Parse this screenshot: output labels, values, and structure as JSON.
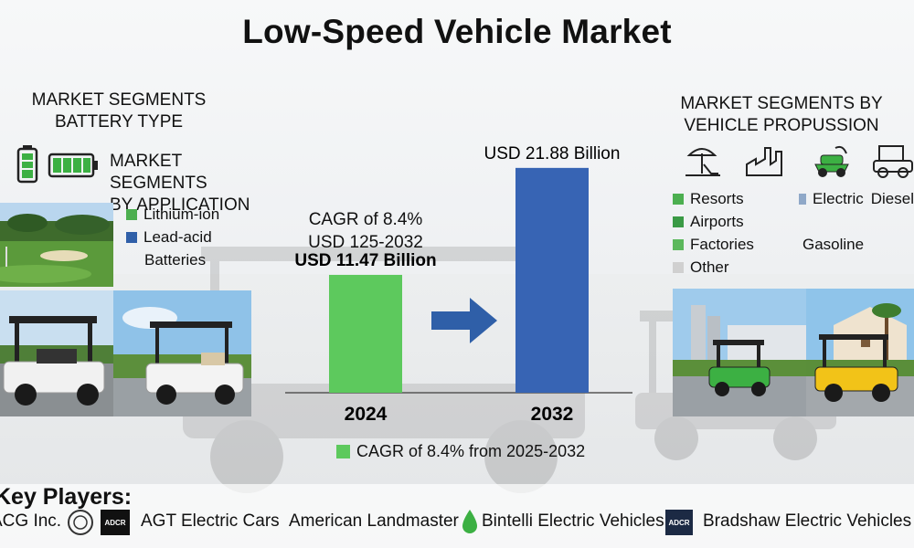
{
  "title": "Low-Speed Vehicle Market",
  "left_panel": {
    "battery_heading_line1": "MARKET SEGMENTS",
    "battery_heading_line2": "BATTERY TYPE",
    "application_heading_line1": "MARKET SEGMENTS",
    "application_heading_line2": "BY APPLICATION",
    "legend": [
      {
        "label": "Lithium-ion",
        "color": "#4caf50"
      },
      {
        "label": "Lead-acid",
        "color": "#2f5fa8"
      },
      {
        "label": "Batteries",
        "color": ""
      }
    ]
  },
  "right_panel": {
    "heading_line1": "MARKET SEGMENTS BY",
    "heading_line2": "VEHICLE PROPUSSION",
    "legend_left": [
      {
        "label": "Resorts",
        "color": "#4caf50"
      },
      {
        "label": "Airports",
        "color": "#3a9a45"
      },
      {
        "label": "Factories",
        "color": "#5cb85c"
      },
      {
        "label": "Other",
        "color": "#d0d0d0"
      }
    ],
    "legend_right": [
      {
        "label": "Electric",
        "color": "#8fa8c8"
      },
      {
        "label": "Diesel",
        "color": ""
      },
      {
        "label": "Gasoline",
        "color": ""
      }
    ]
  },
  "chart_data": {
    "type": "bar",
    "categories": [
      "2024",
      "2032"
    ],
    "values": [
      11.47,
      21.88
    ],
    "value_labels": [
      "USD 11.47 Billion",
      "USD 21.88 Billion"
    ],
    "bar_colors": [
      "#5dc95d",
      "#3764b4"
    ],
    "cagr_note_line1": "CAGR of 8.4%",
    "cagr_note_line2": "USD 125-2032",
    "legend_label": "CAGR of 8.4% from  2025-2032",
    "legend_color": "#5dc95d",
    "title": "",
    "xlabel": "",
    "ylabel": "",
    "ylim": [
      0,
      24
    ],
    "grid": false
  },
  "key_players": {
    "title": "Key Players:",
    "items": [
      {
        "name": "ACG Inc.",
        "logo": "",
        "logo_text": ""
      },
      {
        "name": "AGT Electric Cars",
        "logo": "ADCR",
        "logo_text": "ADCR"
      },
      {
        "name": "American Landmaster",
        "logo": "",
        "logo_text": ""
      },
      {
        "name": "Bintelli Electric Vehicles",
        "logo": "drop-icon",
        "logo_text": ""
      },
      {
        "name": "Bradshaw Electric Vehicles",
        "logo": "ADCR",
        "logo_text": "ADCR"
      }
    ]
  }
}
